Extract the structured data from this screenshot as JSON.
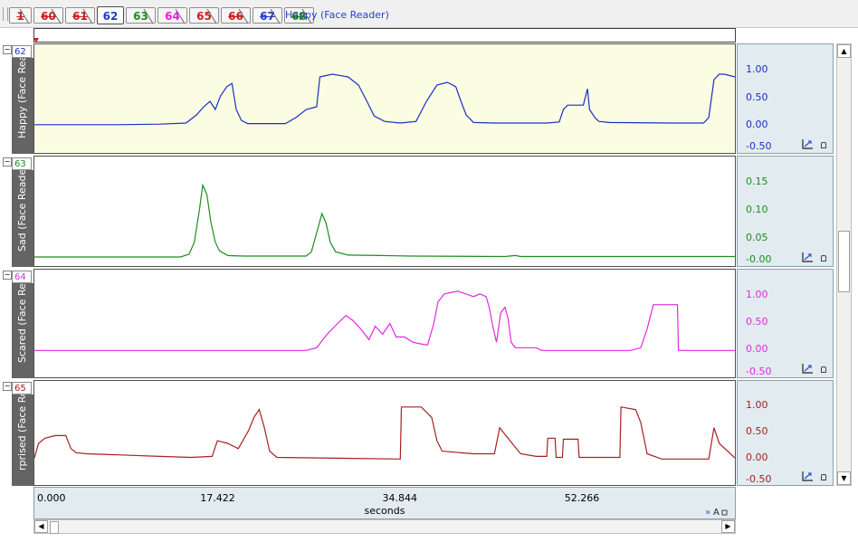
{
  "tabs": [
    {
      "label": "1",
      "color": "#c81e1e",
      "strike": true
    },
    {
      "label": "60",
      "color": "#c81e1e",
      "strike": true
    },
    {
      "label": "61",
      "color": "#c81e1e",
      "strike": true
    },
    {
      "label": "62",
      "color": "#1e3cc8",
      "strike": false,
      "active": true
    },
    {
      "label": "63",
      "color": "#1e8c1e",
      "strike": false
    },
    {
      "label": "64",
      "color": "#e61ee6",
      "strike": false
    },
    {
      "label": "65",
      "color": "#c81e1e",
      "strike": false
    },
    {
      "label": "66",
      "color": "#c81e1e",
      "strike": true
    },
    {
      "label": "67",
      "color": "#1e3cc8",
      "strike": true
    },
    {
      "label": "68",
      "color": "#1e8c1e",
      "strike": true
    }
  ],
  "active_channel_title": "Happy (Face Reader)",
  "channels": [
    {
      "id": "62",
      "label": "Happy (Face Read",
      "color": "#1a2fc4",
      "bg": "#fbfde2",
      "ticks": [
        "1.00",
        "0.50",
        "0.00",
        "-0.50"
      ],
      "scale_min": -0.5,
      "scale_max": 1.5,
      "points": [
        [
          0,
          0.02
        ],
        [
          8,
          0.02
        ],
        [
          12,
          0.03
        ],
        [
          14.5,
          0.05
        ],
        [
          15.5,
          0.2
        ],
        [
          16.2,
          0.35
        ],
        [
          16.8,
          0.45
        ],
        [
          17.3,
          0.3
        ],
        [
          17.8,
          0.55
        ],
        [
          18.4,
          0.72
        ],
        [
          18.9,
          0.78
        ],
        [
          19.3,
          0.3
        ],
        [
          19.8,
          0.1
        ],
        [
          20.4,
          0.04
        ],
        [
          24,
          0.04
        ],
        [
          25,
          0.15
        ],
        [
          26,
          0.3
        ],
        [
          27,
          0.35
        ],
        [
          27.3,
          0.9
        ],
        [
          28.5,
          0.95
        ],
        [
          30,
          0.9
        ],
        [
          31,
          0.75
        ],
        [
          31.8,
          0.45
        ],
        [
          32.5,
          0.18
        ],
        [
          33.5,
          0.08
        ],
        [
          35,
          0.05
        ],
        [
          36.5,
          0.08
        ],
        [
          37.5,
          0.45
        ],
        [
          38,
          0.6
        ],
        [
          38.5,
          0.75
        ],
        [
          39.5,
          0.8
        ],
        [
          40.3,
          0.72
        ],
        [
          40.8,
          0.45
        ],
        [
          41.3,
          0.2
        ],
        [
          42,
          0.06
        ],
        [
          44,
          0.05
        ],
        [
          49,
          0.05
        ],
        [
          50.2,
          0.07
        ],
        [
          50.6,
          0.3
        ],
        [
          51,
          0.38
        ],
        [
          52.5,
          0.38
        ],
        [
          52.9,
          0.68
        ],
        [
          53.1,
          0.3
        ],
        [
          53.6,
          0.15
        ],
        [
          54,
          0.08
        ],
        [
          55,
          0.06
        ],
        [
          61,
          0.05
        ],
        [
          64,
          0.05
        ],
        [
          64.5,
          0.15
        ],
        [
          65,
          0.85
        ],
        [
          65.5,
          0.95
        ],
        [
          66,
          0.95
        ],
        [
          67,
          0.9
        ]
      ]
    },
    {
      "id": "63",
      "label": "Sad (Face Reade",
      "color": "#1e8c1e",
      "bg": "#ffffff",
      "ticks": [
        "0.15",
        "0.10",
        "0.05",
        "-0.00"
      ],
      "scale_min": -0.02,
      "scale_max": 0.21,
      "points": [
        [
          0,
          -0.001
        ],
        [
          14,
          -0.001
        ],
        [
          14.8,
          0.005
        ],
        [
          15.3,
          0.03
        ],
        [
          15.8,
          0.1
        ],
        [
          16.1,
          0.15
        ],
        [
          16.5,
          0.13
        ],
        [
          16.9,
          0.07
        ],
        [
          17.3,
          0.03
        ],
        [
          17.7,
          0.012
        ],
        [
          18.5,
          0.002
        ],
        [
          20,
          0.001
        ],
        [
          26,
          0.001
        ],
        [
          26.5,
          0.01
        ],
        [
          27,
          0.05
        ],
        [
          27.5,
          0.09
        ],
        [
          27.9,
          0.07
        ],
        [
          28.3,
          0.03
        ],
        [
          28.8,
          0.01
        ],
        [
          30,
          0.003
        ],
        [
          33,
          0.002
        ],
        [
          34.5,
          0.0015
        ],
        [
          36,
          0.001
        ],
        [
          45,
          0.0
        ],
        [
          46,
          0.002
        ],
        [
          46.5,
          0.0
        ],
        [
          67,
          0.0
        ]
      ]
    },
    {
      "id": "64",
      "label": "Scared (Face Reac",
      "color": "#e02ae0",
      "bg": "#ffffff",
      "ticks": [
        "1.00",
        "0.50",
        "0.00",
        "-0.50"
      ],
      "scale_min": -0.5,
      "scale_max": 1.5,
      "points": [
        [
          0,
          0.0
        ],
        [
          26,
          0.0
        ],
        [
          27,
          0.05
        ],
        [
          28,
          0.3
        ],
        [
          29,
          0.5
        ],
        [
          29.8,
          0.65
        ],
        [
          30.5,
          0.55
        ],
        [
          31.2,
          0.4
        ],
        [
          32,
          0.2
        ],
        [
          32.6,
          0.45
        ],
        [
          33.3,
          0.3
        ],
        [
          34,
          0.5
        ],
        [
          34.6,
          0.25
        ],
        [
          35.4,
          0.25
        ],
        [
          36.2,
          0.15
        ],
        [
          37,
          0.12
        ],
        [
          37.6,
          0.1
        ],
        [
          38.2,
          0.5
        ],
        [
          38.6,
          0.9
        ],
        [
          39.2,
          1.05
        ],
        [
          40.5,
          1.1
        ],
        [
          42,
          1.0
        ],
        [
          42.6,
          1.05
        ],
        [
          43.2,
          1.0
        ],
        [
          43.5,
          0.8
        ],
        [
          43.9,
          0.4
        ],
        [
          44.2,
          0.15
        ],
        [
          44.6,
          0.7
        ],
        [
          45.0,
          0.8
        ],
        [
          45.3,
          0.6
        ],
        [
          45.6,
          0.15
        ],
        [
          46,
          0.05
        ],
        [
          48,
          0.05
        ],
        [
          48.5,
          0.0
        ],
        [
          57,
          0.0
        ],
        [
          58,
          0.05
        ],
        [
          58.6,
          0.4
        ],
        [
          59.2,
          0.85
        ],
        [
          61.5,
          0.85
        ],
        [
          61.6,
          0.0
        ],
        [
          67,
          0.0
        ]
      ]
    },
    {
      "id": "65",
      "label": "rprised (Face Rea",
      "color": "#a82020",
      "bg": "#ffffff",
      "ticks": [
        "1.00",
        "0.50",
        "0.00",
        "-0.50"
      ],
      "scale_min": -0.5,
      "scale_max": 1.5,
      "points": [
        [
          0,
          0.02
        ],
        [
          0.4,
          0.3
        ],
        [
          1,
          0.4
        ],
        [
          2,
          0.45
        ],
        [
          3,
          0.45
        ],
        [
          3.5,
          0.2
        ],
        [
          4,
          0.12
        ],
        [
          5,
          0.1
        ],
        [
          8,
          0.08
        ],
        [
          12,
          0.05
        ],
        [
          15,
          0.03
        ],
        [
          17,
          0.05
        ],
        [
          17.5,
          0.35
        ],
        [
          18.5,
          0.3
        ],
        [
          19.5,
          0.2
        ],
        [
          20.5,
          0.55
        ],
        [
          21,
          0.8
        ],
        [
          21.5,
          0.95
        ],
        [
          22,
          0.6
        ],
        [
          22.5,
          0.15
        ],
        [
          23.2,
          0.03
        ],
        [
          35,
          0.0
        ],
        [
          35.1,
          1.0
        ],
        [
          37,
          1.0
        ],
        [
          38,
          0.8
        ],
        [
          38.5,
          0.35
        ],
        [
          39,
          0.15
        ],
        [
          42,
          0.1
        ],
        [
          44,
          0.1
        ],
        [
          44.5,
          0.6
        ],
        [
          45.5,
          0.35
        ],
        [
          46.5,
          0.1
        ],
        [
          48,
          0.05
        ],
        [
          49,
          0.05
        ],
        [
          49.1,
          0.4
        ],
        [
          49.8,
          0.4
        ],
        [
          49.9,
          0.03
        ],
        [
          50.5,
          0.03
        ],
        [
          50.6,
          0.38
        ],
        [
          52,
          0.38
        ],
        [
          52.1,
          0.03
        ],
        [
          56,
          0.03
        ],
        [
          56.1,
          1.0
        ],
        [
          57.5,
          0.95
        ],
        [
          58,
          0.7
        ],
        [
          58.6,
          0.1
        ],
        [
          60,
          0.0
        ],
        [
          64.5,
          0.0
        ],
        [
          65,
          0.6
        ],
        [
          65.5,
          0.3
        ],
        [
          67,
          0.02
        ]
      ]
    }
  ],
  "time_axis": {
    "tick_labels": [
      "0.000",
      "17.422",
      "34.844",
      "52.266"
    ],
    "tick_values": [
      0,
      17.422,
      34.844,
      52.266
    ],
    "unit": "seconds",
    "min": 0,
    "max": 67
  }
}
